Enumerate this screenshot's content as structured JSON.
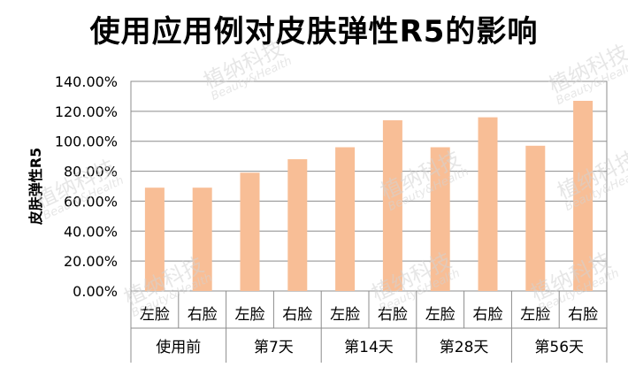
{
  "chart_data": {
    "type": "bar",
    "title": "使用应用例对皮肤弹性R5的影响",
    "ylabel": "皮肤弹性R5",
    "xlabel": "",
    "ylim": [
      0,
      1.4
    ],
    "yticks": [
      "0.00%",
      "20.00%",
      "40.00%",
      "60.00%",
      "80.00%",
      "100.00%",
      "120.00%",
      "140.00%"
    ],
    "groups": [
      "使用前",
      "第7天",
      "第14天",
      "第28天",
      "第56天"
    ],
    "categories": [
      "左脸",
      "右脸",
      "左脸",
      "右脸",
      "左脸",
      "右脸",
      "左脸",
      "右脸",
      "左脸",
      "右脸"
    ],
    "values": [
      0.69,
      0.69,
      0.79,
      0.88,
      0.96,
      1.14,
      0.96,
      1.16,
      0.97,
      1.27
    ],
    "bar_color": "#F8BE96",
    "grid": true,
    "legend": "none"
  },
  "watermark": {
    "text": "植纳科技",
    "subtext": "Beauty&Health"
  }
}
